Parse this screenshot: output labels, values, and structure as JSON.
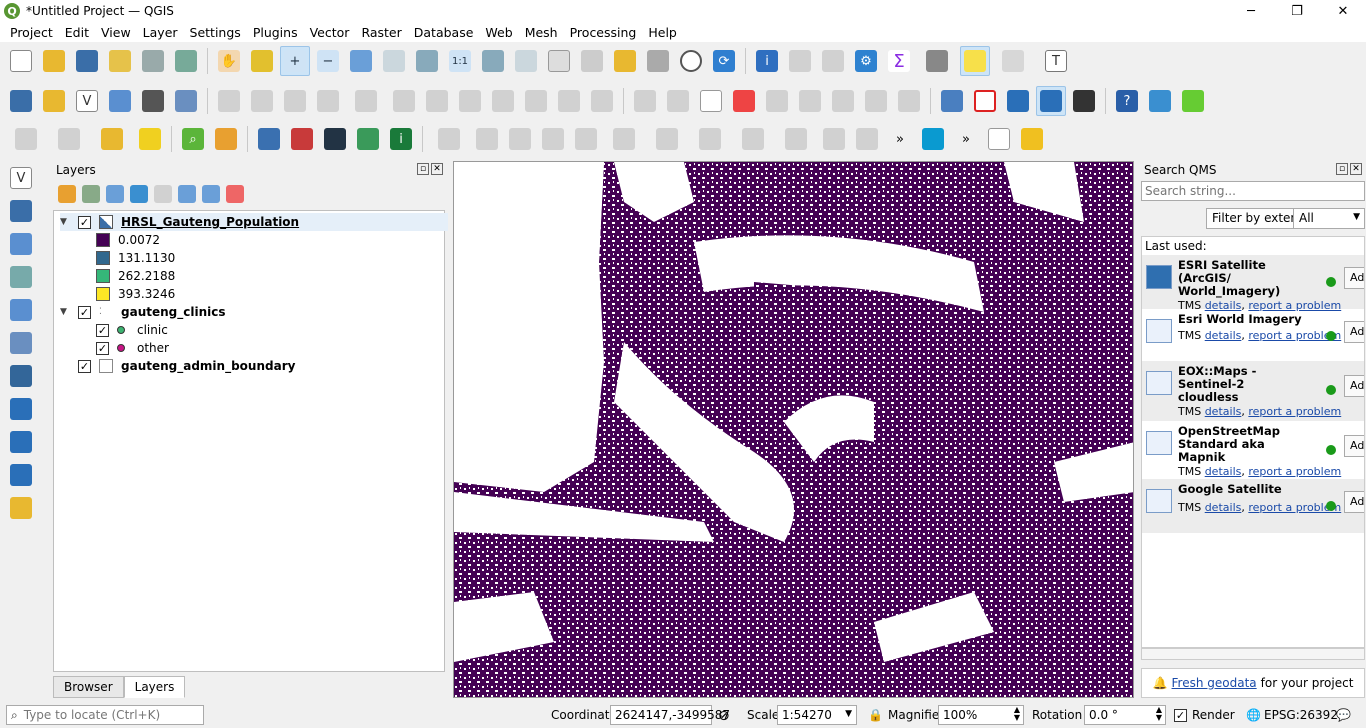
{
  "window": {
    "title": "*Untitled Project — QGIS",
    "app_icon": "qgis-logo-icon",
    "controls": [
      "minimize",
      "maximize",
      "close"
    ]
  },
  "menu": [
    "Project",
    "Edit",
    "View",
    "Layer",
    "Settings",
    "Plugins",
    "Vector",
    "Raster",
    "Database",
    "Web",
    "Mesh",
    "Processing",
    "Help"
  ],
  "layers_panel": {
    "title": "Layers",
    "tree": [
      {
        "name": "HRSL_Gauteng_Population",
        "checked": true,
        "type": "raster",
        "legend": [
          {
            "value": "0.0072",
            "color": "#440154"
          },
          {
            "value": "131.1130",
            "color": "#31688e"
          },
          {
            "value": "262.2188",
            "color": "#35b779"
          },
          {
            "value": "393.3246",
            "color": "#fde725"
          }
        ]
      },
      {
        "name": "gauteng_clinics",
        "checked": true,
        "type": "point",
        "legend": [
          {
            "value": "clinic",
            "color": "#3cb371",
            "checked": true
          },
          {
            "value": "other",
            "color": "#c71585",
            "checked": true
          }
        ]
      },
      {
        "name": "gauteng_admin_boundary",
        "checked": true,
        "type": "polygon"
      }
    ],
    "tabs": [
      "Browser",
      "Layers"
    ],
    "active_tab": "Layers"
  },
  "map": {
    "raster_color": "#440154",
    "background": "#ffffff"
  },
  "qms": {
    "title": "Search QMS",
    "search_placeholder": "Search string...",
    "filter_button": "Filter by extent",
    "filter_select": "All",
    "last_used_label": "Last used:",
    "services": [
      {
        "title_lines": [
          "ESRI Satellite (ArcGIS/",
          "World_Imagery)"
        ],
        "type": "TMS",
        "details": "details",
        "report": "report a problem",
        "add": "Add"
      },
      {
        "title_lines": [
          "Esri World Imagery"
        ],
        "type": "TMS",
        "details": "details",
        "report": "report a problem",
        "add": "Add"
      },
      {
        "title_lines": [
          "EOX::Maps - Sentinel-2",
          "cloudless"
        ],
        "type": "TMS",
        "details": "details",
        "report": "report a problem",
        "add": "Add"
      },
      {
        "title_lines": [
          "OpenStreetMap",
          "Standard aka Mapnik"
        ],
        "type": "TMS",
        "details": "details",
        "report": "report a problem",
        "add": "Add"
      },
      {
        "title_lines": [
          "Google Satellite"
        ],
        "type": "TMS",
        "details": "details",
        "report": "report a problem",
        "add": "Add"
      }
    ],
    "fresh_link": "Fresh geodata",
    "fresh_suffix": "for your project"
  },
  "status": {
    "locate_placeholder": "Type to locate (Ctrl+K)",
    "coordinate_label": "Coordinate",
    "coordinate": "2624147,-3499587",
    "scale_label": "Scale",
    "scale": "1:54270",
    "magnifier_label": "Magnifier",
    "magnifier": "100%",
    "rotation_label": "Rotation",
    "rotation": "0.0 °",
    "render_label": "Render",
    "render_checked": true,
    "crs": "EPSG:26392"
  }
}
